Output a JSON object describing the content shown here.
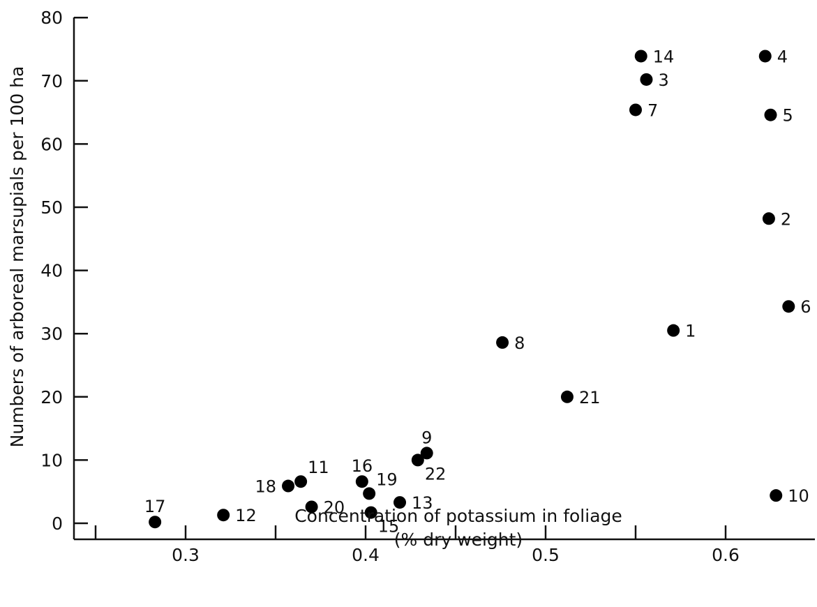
{
  "chart_data": {
    "type": "scatter",
    "xlabel_line1": "Concentration of potassium in foliage",
    "xlabel_line2": "(% dry weight)",
    "ylabel": "Numbers of arboreal marsupials per 100 ha",
    "xlim": [
      0.24,
      0.65
    ],
    "ylim": [
      -2,
      80
    ],
    "x_ticks": [
      0.25,
      0.3,
      0.35,
      0.4,
      0.45,
      0.5,
      0.55,
      0.6
    ],
    "x_tick_labels": [
      {
        "value": 0.3,
        "label": "0.3"
      },
      {
        "value": 0.4,
        "label": "0.4"
      },
      {
        "value": 0.5,
        "label": "0.5"
      },
      {
        "value": 0.6,
        "label": "0.6"
      }
    ],
    "y_ticks": [
      0,
      10,
      20,
      30,
      40,
      50,
      60,
      70,
      80
    ],
    "y_tick_labels": [
      "0",
      "10",
      "20",
      "30",
      "40",
      "50",
      "60",
      "70",
      "80"
    ],
    "grid": false,
    "points": [
      {
        "label": "1",
        "x": 0.571,
        "y": 30.5,
        "label_pos": "right"
      },
      {
        "label": "2",
        "x": 0.624,
        "y": 48.2,
        "label_pos": "right"
      },
      {
        "label": "3",
        "x": 0.556,
        "y": 70.2,
        "label_pos": "right"
      },
      {
        "label": "4",
        "x": 0.622,
        "y": 73.9,
        "label_pos": "right"
      },
      {
        "label": "5",
        "x": 0.625,
        "y": 64.6,
        "label_pos": "right"
      },
      {
        "label": "6",
        "x": 0.635,
        "y": 34.3,
        "label_pos": "right"
      },
      {
        "label": "7",
        "x": 0.55,
        "y": 65.4,
        "label_pos": "right"
      },
      {
        "label": "8",
        "x": 0.476,
        "y": 28.6,
        "label_pos": "right"
      },
      {
        "label": "9",
        "x": 0.434,
        "y": 11.1,
        "label_pos": "above"
      },
      {
        "label": "10",
        "x": 0.628,
        "y": 4.4,
        "label_pos": "right"
      },
      {
        "label": "11",
        "x": 0.364,
        "y": 6.6,
        "label_pos": "above-right"
      },
      {
        "label": "12",
        "x": 0.321,
        "y": 1.3,
        "label_pos": "right"
      },
      {
        "label": "13",
        "x": 0.419,
        "y": 3.3,
        "label_pos": "right"
      },
      {
        "label": "14",
        "x": 0.553,
        "y": 73.9,
        "label_pos": "right"
      },
      {
        "label": "15",
        "x": 0.403,
        "y": 1.7,
        "label_pos": "below-right"
      },
      {
        "label": "16",
        "x": 0.398,
        "y": 6.6,
        "label_pos": "above"
      },
      {
        "label": "17",
        "x": 0.283,
        "y": 0.2,
        "label_pos": "above"
      },
      {
        "label": "18",
        "x": 0.357,
        "y": 5.9,
        "label_pos": "left"
      },
      {
        "label": "19",
        "x": 0.402,
        "y": 4.7,
        "label_pos": "above-right"
      },
      {
        "label": "20",
        "x": 0.37,
        "y": 2.6,
        "label_pos": "right"
      },
      {
        "label": "21",
        "x": 0.512,
        "y": 20.0,
        "label_pos": "right"
      },
      {
        "label": "22",
        "x": 0.429,
        "y": 10.0,
        "label_pos": "below-right"
      }
    ]
  }
}
